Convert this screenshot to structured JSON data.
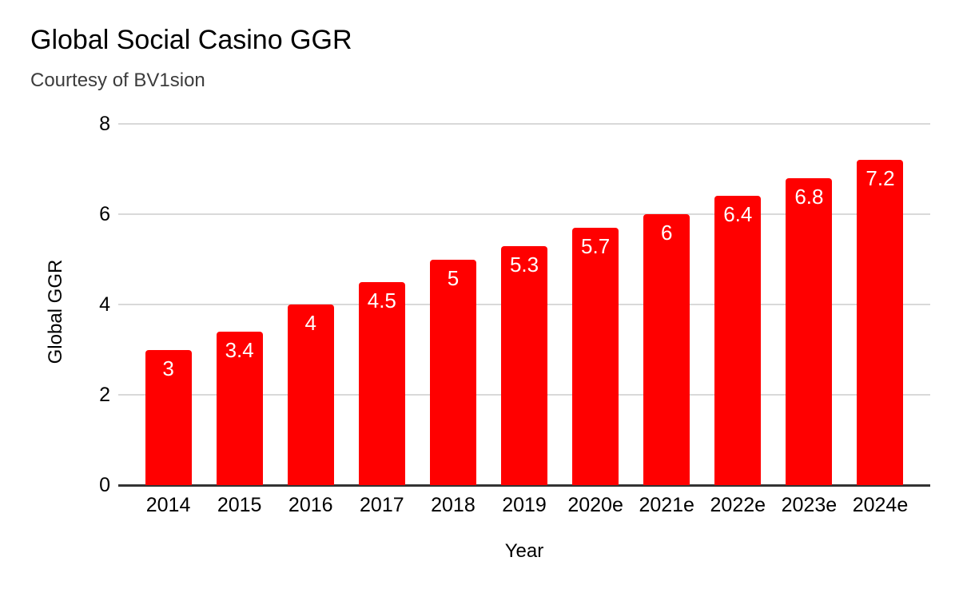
{
  "chart_data": {
    "type": "bar",
    "title": "Global Social Casino GGR",
    "subtitle": "Courtesy of BV1sion",
    "xlabel": "Year",
    "ylabel": "Global GGR",
    "categories": [
      "2014",
      "2015",
      "2016",
      "2017",
      "2018",
      "2019",
      "2020e",
      "2021e",
      "2022e",
      "2023e",
      "2024e"
    ],
    "values": [
      3,
      3.4,
      4,
      4.5,
      5,
      5.3,
      5.7,
      6,
      6.4,
      6.8,
      7.2
    ],
    "bar_labels": [
      "3",
      "3.4",
      "4",
      "4.5",
      "5",
      "5.3",
      "5.7",
      "6",
      "6.4",
      "6.8",
      "7.2"
    ],
    "ylim": [
      0,
      8
    ],
    "yticks": [
      0,
      2,
      4,
      6,
      8
    ],
    "grid": "horizontal",
    "legend": "none",
    "colors": {
      "bar": "#ff0000",
      "bar_label": "#ffffff",
      "gridline": "#d9d9d9",
      "axis_line": "#333333",
      "text": "#000000",
      "subtitle_text": "#3c3c3c"
    }
  }
}
